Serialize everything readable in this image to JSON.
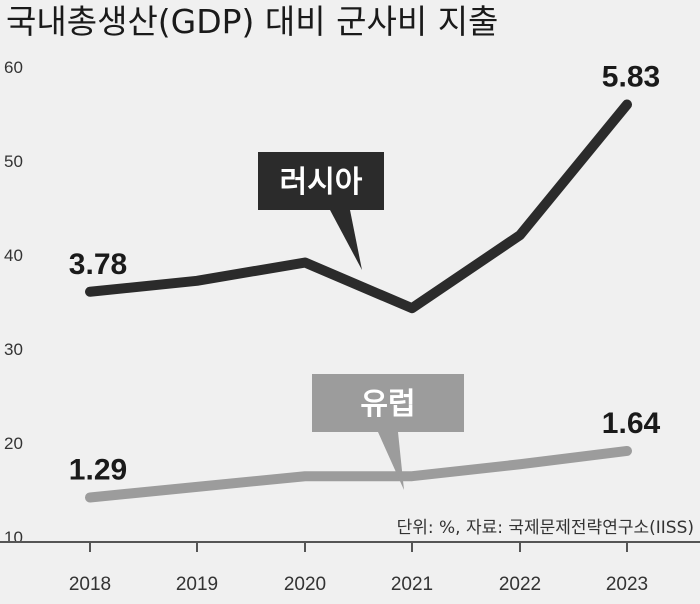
{
  "chart_data": {
    "type": "line",
    "title": "국내총생산(GDP) 대비 군사비 지출",
    "source": "단위: %, 자료: 국제문제전략연구소(IISS)",
    "categories": [
      "2018",
      "2019",
      "2020",
      "2021",
      "2022",
      "2023"
    ],
    "y_ticks": [
      "60",
      "50",
      "40",
      "30",
      "20",
      "10"
    ],
    "series": [
      {
        "name": "러시아",
        "values": [
          3.78,
          3.9,
          4.1,
          3.6,
          4.4,
          5.83
        ],
        "color": "#2b2b2b",
        "labels": {
          "0": "3.78",
          "5": "5.83"
        }
      },
      {
        "name": "유럽",
        "values": [
          1.29,
          1.37,
          1.45,
          1.45,
          1.54,
          1.64
        ],
        "color": "#9c9c9c",
        "labels": {
          "0": "1.29",
          "5": "1.64"
        }
      }
    ],
    "grid": false,
    "legend": "callout labels on lines"
  }
}
